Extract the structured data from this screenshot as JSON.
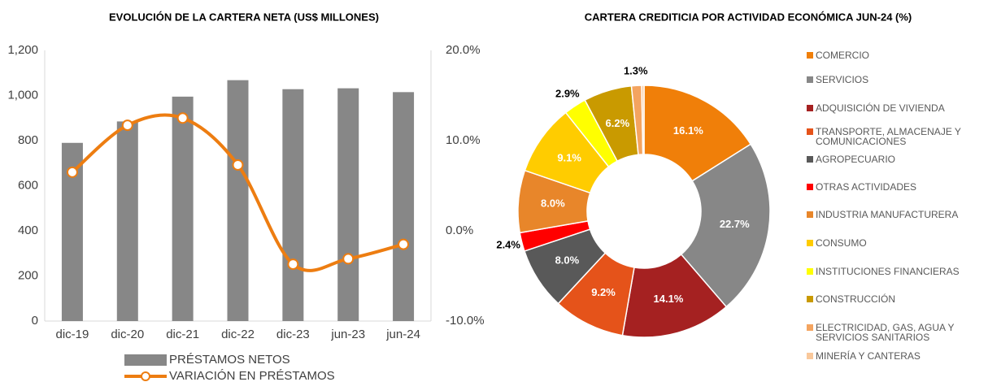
{
  "chart_data": [
    {
      "type": "bar",
      "title": "EVOLUCIÓN DE LA CARTERA NETA (US$ MILLONES)",
      "categories": [
        "dic-19",
        "dic-20",
        "dic-21",
        "dic-22",
        "dic-23",
        "jun-23",
        "jun-24"
      ],
      "series": [
        {
          "name": "PRÉSTAMOS NETOS",
          "color": "#878787",
          "values": [
            790,
            885,
            995,
            1068,
            1028,
            1032,
            1015
          ]
        },
        {
          "name": "VARIACIÓN EN PRÉSTAMOS",
          "color": "#ed7d11",
          "type": "line",
          "axis": "y2",
          "smooth": true,
          "values": [
            6.5,
            11.7,
            12.5,
            7.3,
            -3.7,
            -3.1,
            -1.5
          ]
        }
      ],
      "ylim": [
        0,
        1200
      ],
      "yticks": [
        0,
        200,
        400,
        600,
        800,
        {
          "value": 1000,
          "label": "1,000"
        },
        {
          "value": 1200,
          "label": "1,200"
        }
      ],
      "y2lim": [
        -10,
        20
      ],
      "y2ticks": [
        {
          "value": -10,
          "label": "-10.0%"
        },
        {
          "value": 0,
          "label": "0.0%"
        },
        {
          "value": 10,
          "label": "10.0%"
        },
        {
          "value": 20,
          "label": "20.0%"
        }
      ]
    },
    {
      "type": "donut",
      "title": "CARTERA CREDITICIA POR ACTIVIDAD ECONÓMICA JUN-24 (%)",
      "categories": [
        "COMERCIO",
        "SERVICIOS",
        "ADQUISICIÓN DE VIVIENDA",
        "TRANSPORTE, ALMACENAJE Y COMUNICACIONES",
        "AGROPECUARIO",
        "OTRAS ACTIVIDADES",
        "INDUSTRIA MANUFACTURERA",
        "CONSUMO",
        "INSTITUCIONES FINANCIERAS",
        "CONSTRUCCIÓN",
        "ELECTRICIDAD, GAS, AGUA Y SERVICIOS SANITARIOS",
        "MINERÍA Y CANTERAS"
      ],
      "values": [
        16.1,
        22.7,
        14.1,
        9.2,
        8.0,
        2.4,
        8.0,
        9.1,
        2.9,
        6.2,
        1.3,
        0.3
      ],
      "value_labels": [
        "16.1%",
        "22.7%",
        "14.1%",
        "9.2%",
        "8.0%",
        "2.4%",
        "8.0%",
        "9.1%",
        "2.9%",
        "6.2%",
        "1.3%",
        null
      ],
      "colors": [
        "#f07f09",
        "#878787",
        "#a52121",
        "#e5531a",
        "#595959",
        "#ff0000",
        "#e8862a",
        "#ffcc00",
        "#ffff00",
        "#c99a00",
        "#f4a460",
        "#f9c89b"
      ]
    }
  ]
}
